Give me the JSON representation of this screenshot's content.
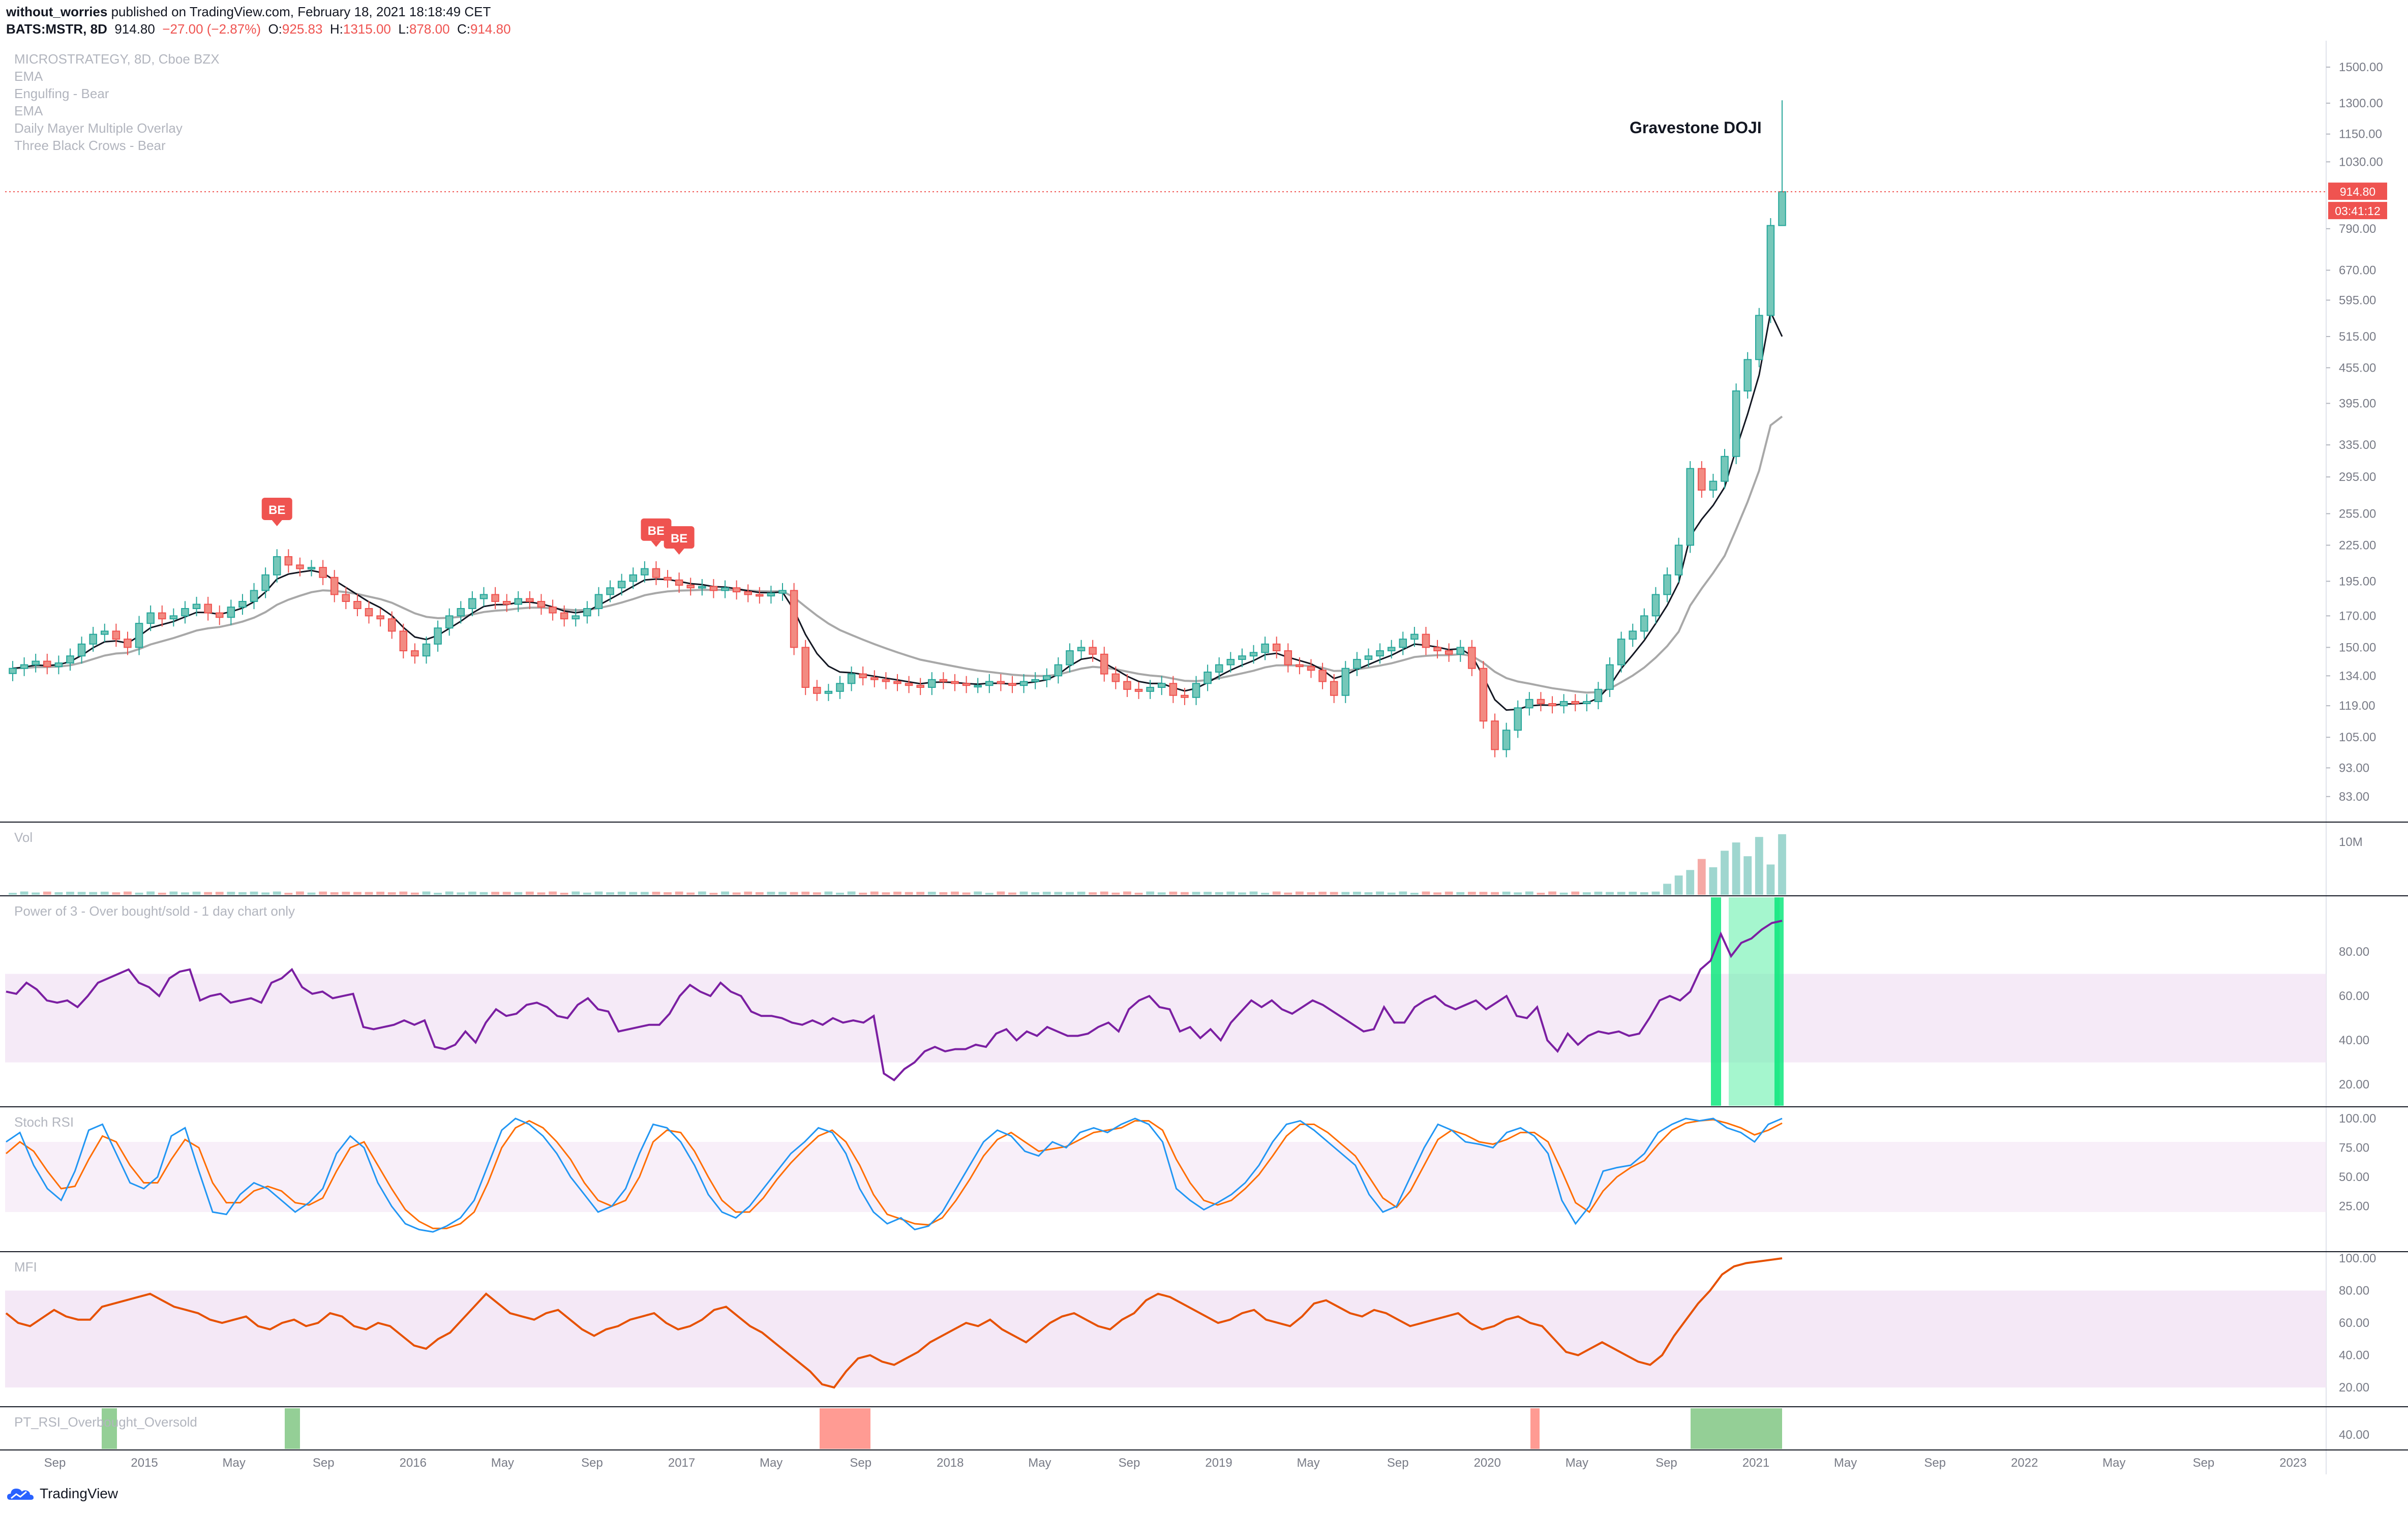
{
  "header": {
    "line1_user": "without_worries",
    "line1_rest": " published on TradingView.com, February 18, 2021 18:18:49 CET",
    "symbol": "BATS:MSTR, 8D",
    "last": "914.80",
    "change": "−27.00 (−2.87%)",
    "o_label": "O:",
    "o": "925.83",
    "h_label": "H:",
    "h": "1315.00",
    "l_label": "L:",
    "l": "878.00",
    "c_label": "C:",
    "c": "914.80"
  },
  "legend": [
    "MICROSTRATEGY, 8D, Cboe BZX",
    "EMA",
    "Engulfing - Bear",
    "EMA",
    "Daily Mayer Multiple Overlay",
    "Three Black Crows - Bear"
  ],
  "annotation": "Gravestone DOJI",
  "be_label": "BE",
  "price_tag": "914.80",
  "time_tag": "03:41:12",
  "pane_labels": {
    "vol": "Vol",
    "pow3": "Power of 3 - Over bought/sold - 1 day chart only",
    "stoch": "Stoch RSI",
    "mfi": "MFI",
    "pt": "PT_RSI_Overbought_Oversold"
  },
  "brand": "TradingView",
  "colors": {
    "up": "#26a69a",
    "up_fill": "#76c7b9",
    "down": "#ef5350",
    "down_fill": "#f28b82",
    "ema_fast": "#131722",
    "ema_slow": "#a8a8a8",
    "purple": "#7b1fa2",
    "stoch_k": "#2196f3",
    "stoch_d": "#ff6d00",
    "mfi": "#e65100"
  },
  "chart_data": {
    "type": "line",
    "main": {
      "price_axis_ticks": [
        "1500.00",
        "1300.00",
        "1150.00",
        "1030.00",
        "790.00",
        "670.00",
        "595.00",
        "515.00",
        "455.00",
        "395.00",
        "335.00",
        "295.00",
        "255.00",
        "225.00",
        "195.00",
        "170.00",
        "150.00",
        "134.00",
        "119.00",
        "105.00",
        "93.00",
        "83.00"
      ],
      "time_axis_labels": [
        "Sep",
        "2015",
        "May",
        "Sep",
        "2016",
        "May",
        "Sep",
        "2017",
        "May",
        "Sep",
        "2018",
        "May",
        "Sep",
        "2019",
        "May",
        "Sep",
        "2020",
        "May",
        "Sep",
        "2021",
        "May",
        "Sep",
        "2022",
        "May",
        "Sep",
        "2023"
      ],
      "close_series": [
        138,
        140,
        142,
        139,
        141,
        145,
        152,
        158,
        160,
        155,
        150,
        165,
        172,
        168,
        170,
        175,
        178,
        172,
        169,
        176,
        180,
        188,
        200,
        215,
        208,
        205,
        206,
        198,
        185,
        180,
        175,
        170,
        168,
        160,
        148,
        145,
        152,
        162,
        170,
        175,
        182,
        185,
        180,
        178,
        182,
        180,
        176,
        172,
        168,
        170,
        175,
        185,
        190,
        195,
        200,
        205,
        198,
        196,
        192,
        190,
        191,
        188,
        190,
        187,
        185,
        184,
        186,
        188,
        150,
        128,
        125,
        126,
        130,
        135,
        133,
        132,
        131,
        130,
        129,
        128,
        132,
        131,
        130,
        129,
        129,
        131,
        130,
        129,
        131,
        132,
        134,
        140,
        148,
        150,
        146,
        135,
        131,
        127,
        126,
        128,
        130,
        124,
        123,
        130,
        136,
        140,
        143,
        145,
        147,
        152,
        148,
        140,
        139,
        137,
        131,
        124,
        138,
        143,
        145,
        148,
        150,
        155,
        158,
        150,
        148,
        146,
        150,
        138,
        112,
        100,
        108,
        118,
        122,
        120,
        119,
        121,
        120,
        121,
        127,
        140,
        155,
        160,
        170,
        185,
        200,
        225,
        305,
        280,
        290,
        320,
        415,
        470,
        560,
        800,
        914.8
      ],
      "ema_fast_end": 515,
      "ema_slow_end": 375,
      "signals": [
        {
          "label": "BE",
          "index": 23
        },
        {
          "label": "BE",
          "index": 56
        },
        {
          "label": "BE",
          "index": 58
        }
      ],
      "last_price": 914.8,
      "high_last": 1315.0,
      "low_last": 878.0
    },
    "volume": {
      "axis_label": "10M",
      "recent_values_m": [
        2.0,
        3.5,
        4.5,
        6.5,
        5.0,
        8.0,
        9.5,
        7.0,
        10.5,
        5.5,
        11.0
      ]
    },
    "power_of_3": {
      "ticks": [
        80,
        60,
        40,
        20
      ],
      "values": [
        62,
        61,
        66,
        63,
        58,
        57,
        58,
        55,
        60,
        66,
        68,
        70,
        72,
        66,
        64,
        60,
        68,
        71,
        72,
        58,
        60,
        61,
        57,
        58,
        59,
        57,
        66,
        68,
        72,
        64,
        61,
        62,
        59,
        60,
        61,
        46,
        45,
        46,
        47,
        49,
        47,
        49,
        37,
        36,
        38,
        44,
        39,
        48,
        54,
        51,
        52,
        56,
        57,
        55,
        51,
        50,
        56,
        59,
        54,
        53,
        44,
        45,
        46,
        47,
        47,
        52,
        60,
        65,
        62,
        60,
        66,
        62,
        60,
        53,
        51,
        51,
        50,
        48,
        47,
        49,
        47,
        50,
        48,
        49,
        48,
        51,
        25,
        22,
        27,
        30,
        35,
        37,
        35,
        36,
        36,
        38,
        37,
        43,
        45,
        40,
        44,
        42,
        46,
        44,
        42,
        42,
        43,
        46,
        48,
        44,
        54,
        58,
        60,
        55,
        54,
        44,
        46,
        41,
        45,
        40,
        48,
        53,
        58,
        55,
        58,
        54,
        52,
        55,
        58,
        56,
        53,
        50,
        47,
        44,
        45,
        55,
        48,
        48,
        55,
        58,
        60,
        56,
        54,
        56,
        58,
        54,
        57,
        60,
        51,
        50,
        55,
        40,
        35,
        43,
        38,
        42,
        44,
        43,
        44,
        42,
        43,
        50,
        58,
        60,
        58,
        62,
        72,
        76,
        88,
        78,
        84,
        86,
        90,
        93,
        94
      ]
    },
    "stoch_rsi": {
      "ticks": [
        100,
        75,
        50,
        25
      ],
      "k": [
        80,
        88,
        60,
        40,
        30,
        55,
        90,
        95,
        70,
        45,
        40,
        50,
        85,
        92,
        55,
        20,
        18,
        35,
        45,
        40,
        30,
        20,
        28,
        40,
        70,
        85,
        75,
        45,
        25,
        10,
        5,
        3,
        8,
        15,
        30,
        60,
        90,
        100,
        95,
        85,
        70,
        50,
        35,
        20,
        25,
        40,
        70,
        95,
        92,
        80,
        60,
        35,
        20,
        15,
        25,
        40,
        55,
        70,
        80,
        92,
        88,
        70,
        40,
        20,
        10,
        15,
        5,
        8,
        20,
        40,
        60,
        80,
        90,
        85,
        72,
        68,
        80,
        75,
        88,
        92,
        88,
        95,
        100,
        95,
        80,
        40,
        30,
        22,
        28,
        35,
        45,
        60,
        80,
        95,
        98,
        90,
        80,
        70,
        60,
        35,
        20,
        25,
        50,
        75,
        95,
        90,
        80,
        78,
        75,
        88,
        92,
        85,
        70,
        30,
        10,
        25,
        55,
        58,
        60,
        70,
        88,
        95,
        100,
        98,
        100,
        92,
        88,
        80,
        95,
        100
      ],
      "d": [
        70,
        80,
        72,
        55,
        40,
        42,
        65,
        85,
        80,
        60,
        45,
        45,
        65,
        82,
        75,
        45,
        28,
        28,
        38,
        42,
        38,
        28,
        26,
        32,
        55,
        75,
        80,
        60,
        40,
        22,
        12,
        6,
        6,
        10,
        20,
        45,
        75,
        92,
        98,
        92,
        80,
        65,
        45,
        30,
        25,
        30,
        50,
        80,
        90,
        88,
        72,
        50,
        30,
        20,
        20,
        32,
        48,
        62,
        74,
        85,
        90,
        80,
        60,
        35,
        18,
        14,
        10,
        9,
        15,
        30,
        48,
        68,
        82,
        88,
        80,
        72,
        74,
        76,
        82,
        88,
        90,
        92,
        98,
        98,
        90,
        65,
        45,
        30,
        26,
        30,
        40,
        52,
        68,
        85,
        95,
        95,
        88,
        78,
        68,
        50,
        32,
        24,
        38,
        60,
        82,
        90,
        86,
        80,
        78,
        82,
        88,
        88,
        80,
        55,
        28,
        20,
        38,
        50,
        58,
        64,
        78,
        90,
        96,
        98,
        99,
        96,
        92,
        86,
        90,
        96
      ]
    },
    "mfi": {
      "ticks": [
        100,
        80,
        60,
        40,
        20
      ],
      "values": [
        66,
        60,
        58,
        63,
        68,
        64,
        62,
        62,
        70,
        72,
        74,
        76,
        78,
        74,
        70,
        68,
        66,
        62,
        60,
        62,
        64,
        58,
        56,
        60,
        62,
        58,
        60,
        66,
        64,
        58,
        56,
        60,
        58,
        52,
        46,
        44,
        50,
        54,
        62,
        70,
        78,
        72,
        66,
        64,
        62,
        66,
        68,
        62,
        56,
        52,
        56,
        58,
        62,
        64,
        66,
        60,
        56,
        58,
        62,
        68,
        70,
        64,
        58,
        54,
        48,
        42,
        36,
        30,
        22,
        20,
        30,
        38,
        40,
        36,
        34,
        38,
        42,
        48,
        52,
        56,
        60,
        58,
        62,
        56,
        52,
        48,
        54,
        60,
        64,
        66,
        62,
        58,
        56,
        62,
        66,
        74,
        78,
        76,
        72,
        68,
        64,
        60,
        62,
        66,
        68,
        62,
        60,
        58,
        64,
        72,
        74,
        70,
        66,
        64,
        68,
        66,
        62,
        58,
        60,
        62,
        64,
        66,
        60,
        56,
        58,
        62,
        64,
        60,
        58,
        50,
        42,
        40,
        44,
        48,
        44,
        40,
        36,
        34,
        40,
        52,
        62,
        72,
        80,
        90,
        95,
        97,
        98,
        99,
        100
      ]
    },
    "pt_rsi": {
      "tick": 40,
      "highlights": [
        {
          "kind": "oversold",
          "color": "green"
        },
        {
          "kind": "oversold",
          "color": "green"
        },
        {
          "kind": "overbought",
          "color": "red"
        },
        {
          "kind": "overbought",
          "color": "red"
        },
        {
          "kind": "oversold",
          "color": "green"
        }
      ]
    }
  }
}
